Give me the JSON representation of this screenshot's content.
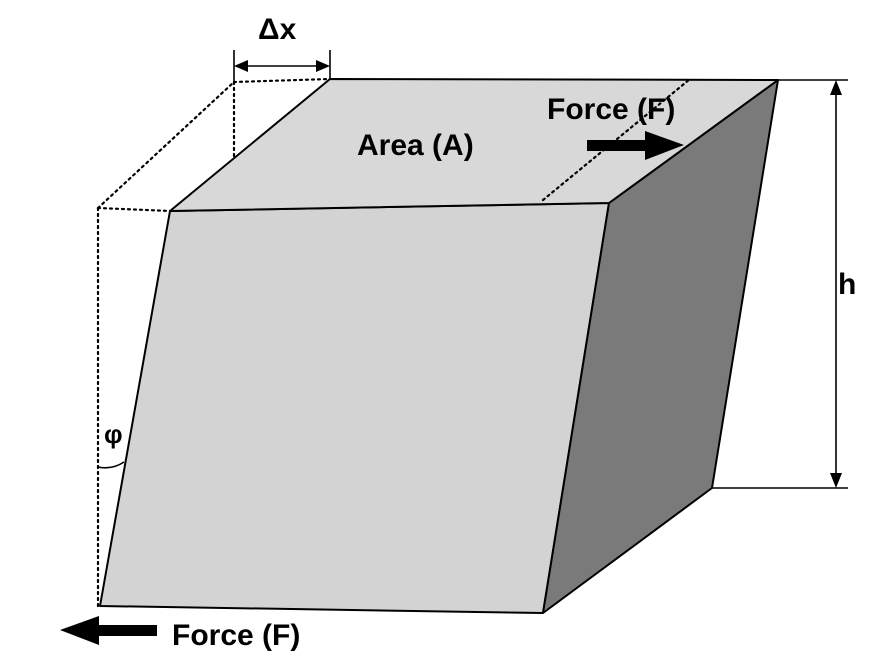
{
  "labels": {
    "delta_x": "Δx",
    "area": "Area (A)",
    "force_top": "Force (F)",
    "height": "h",
    "angle": "φ",
    "force_bottom": "Force (F)"
  },
  "colors": {
    "front_face": "#d3d3d3",
    "top_face": "#d8d8d8",
    "side_face": "#7a7a7a",
    "outline": "#000000"
  }
}
